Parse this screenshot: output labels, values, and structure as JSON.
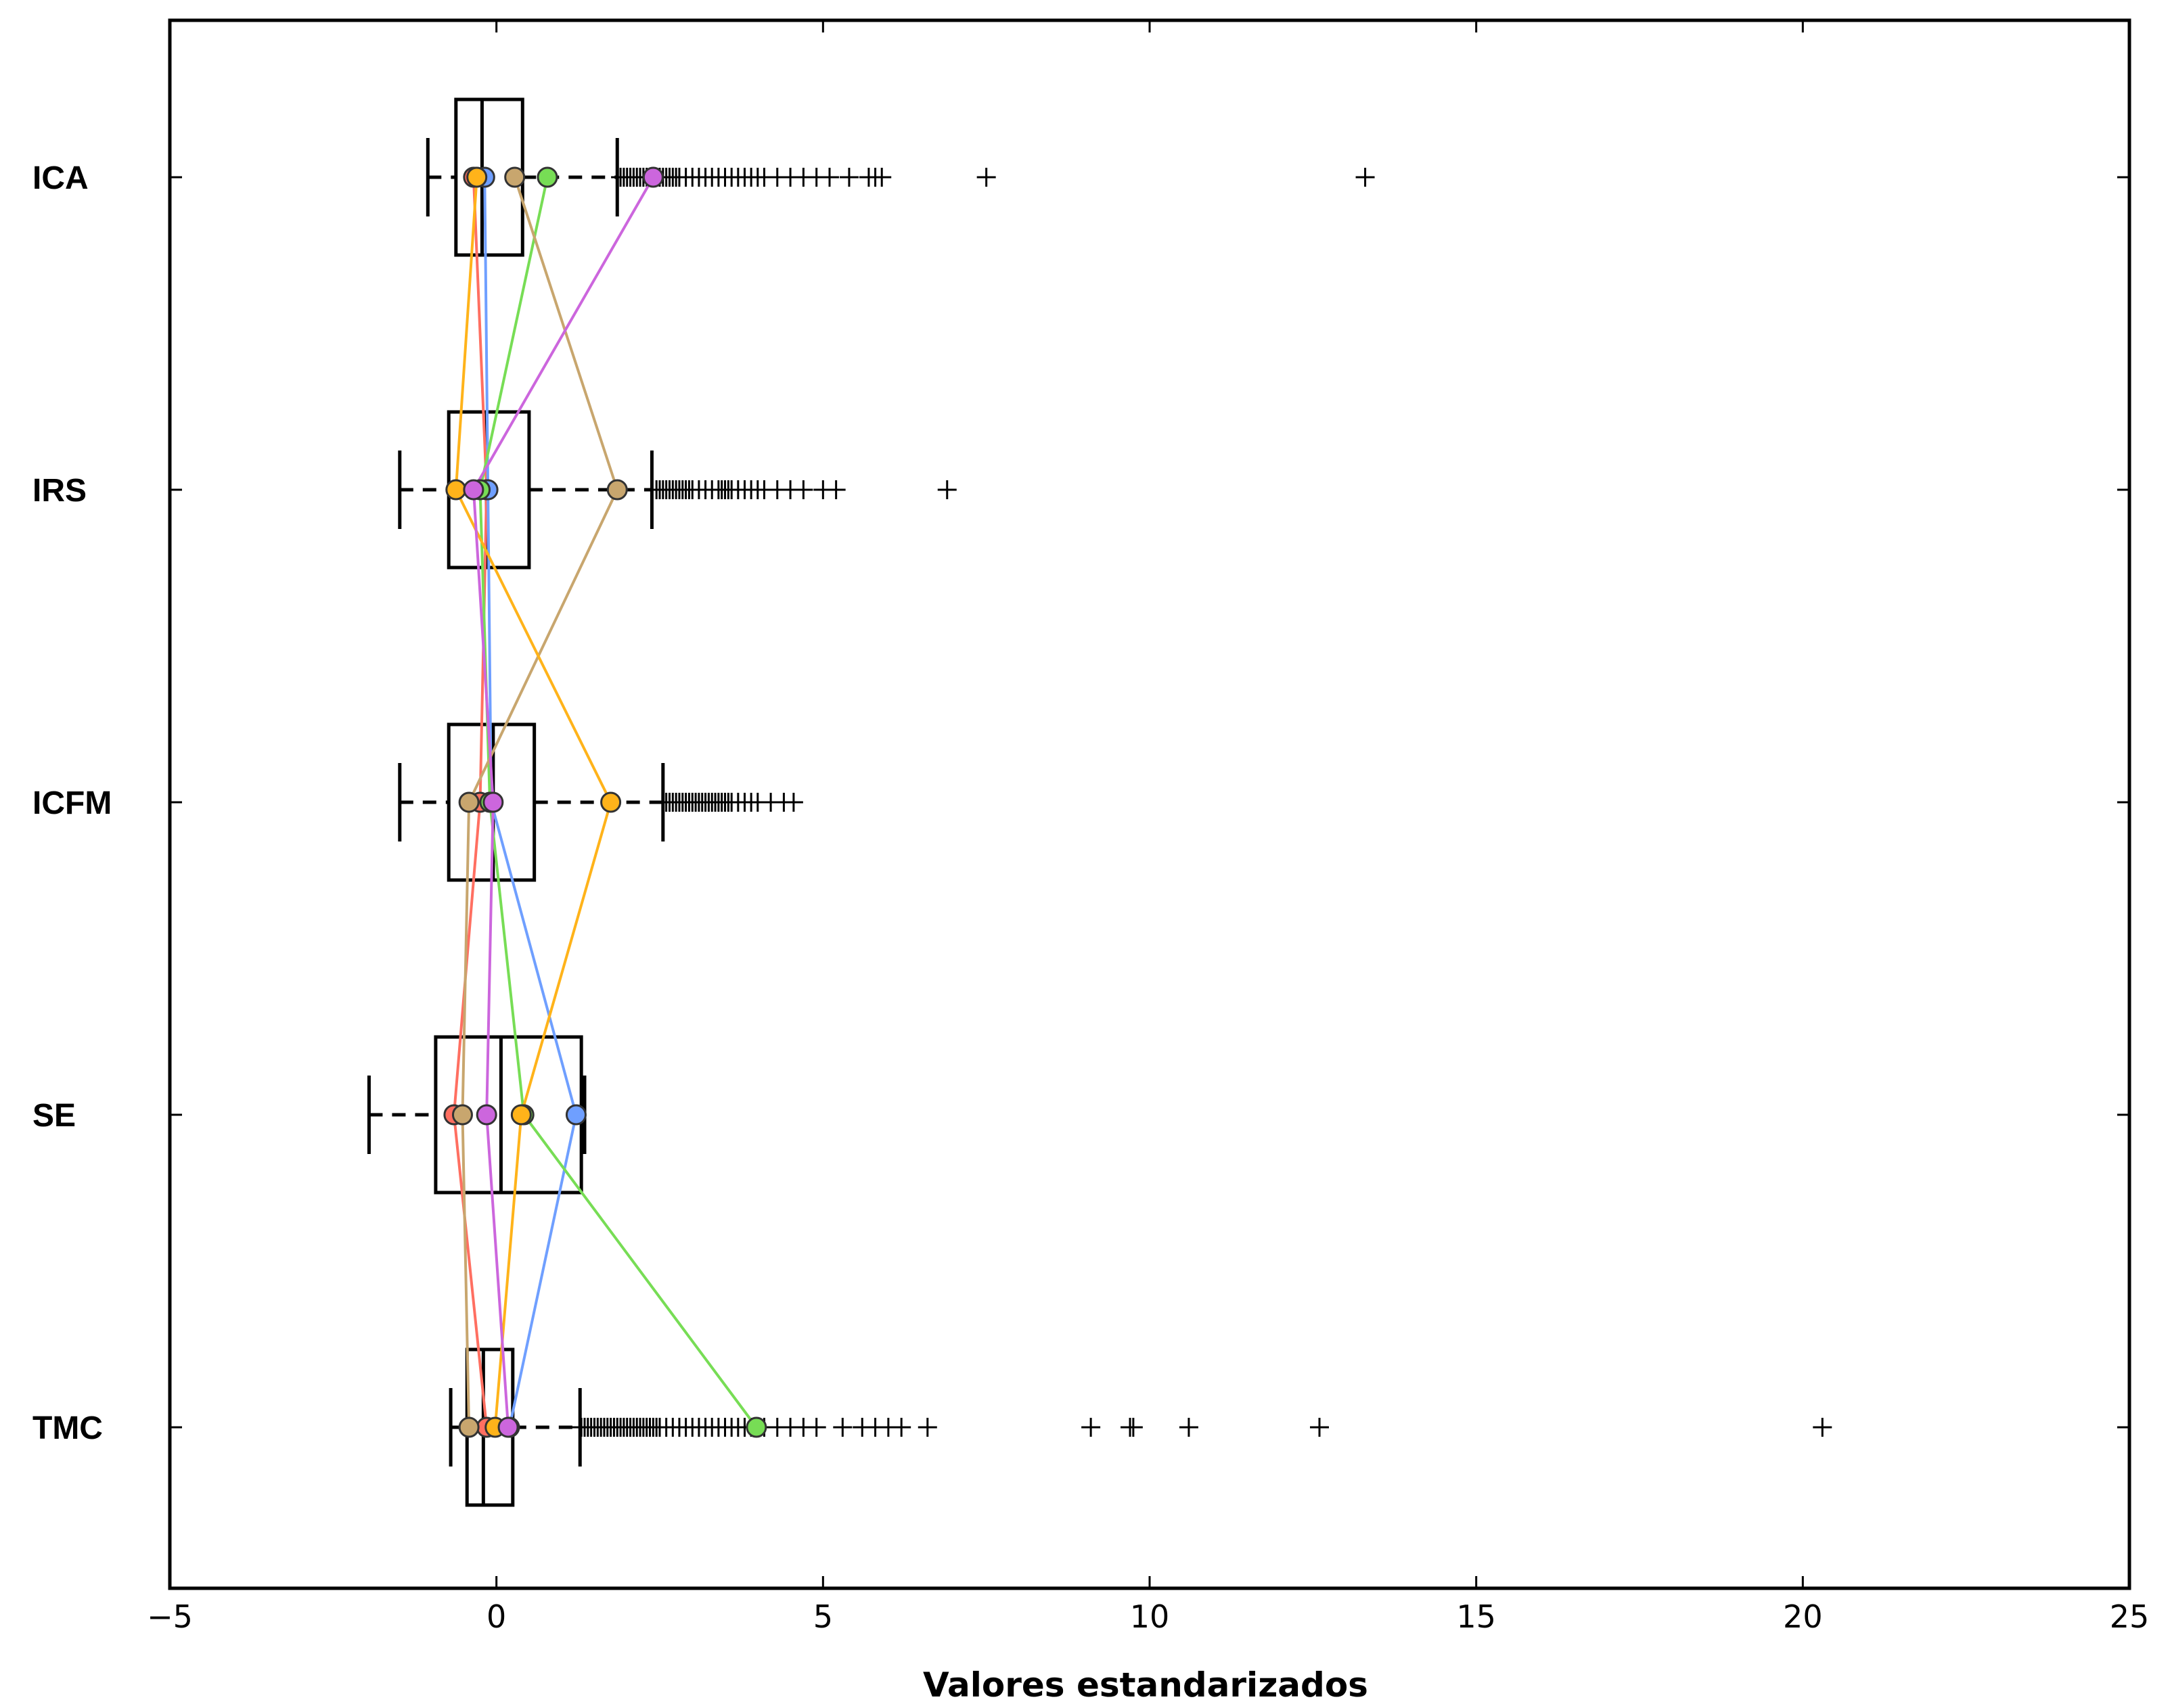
{
  "chart_data": {
    "type": "boxplot",
    "orientation": "horizontal",
    "xlabel": "Valores estandarizados",
    "ylabel": "",
    "xlim": [
      -5,
      25
    ],
    "xticks": [
      -5,
      0,
      5,
      10,
      15,
      20,
      25
    ],
    "xtick_labels": [
      "−5",
      "0",
      "5",
      "10",
      "15",
      "20",
      "25"
    ],
    "categories": [
      "ICA",
      "IRS",
      "ICFM",
      "SE",
      "TMC"
    ],
    "boxes": [
      {
        "name": "ICA",
        "whisker_low": -1.05,
        "q1": -0.62,
        "median": -0.22,
        "q3": 0.4,
        "whisker_high": 1.85,
        "outliers": [
          1.9,
          1.95,
          2.0,
          2.05,
          2.1,
          2.15,
          2.2,
          2.25,
          2.3,
          2.35,
          2.4,
          2.45,
          2.5,
          2.55,
          2.6,
          2.65,
          2.7,
          2.75,
          2.8,
          2.9,
          3.0,
          3.1,
          3.2,
          3.3,
          3.4,
          3.5,
          3.6,
          3.7,
          3.8,
          3.9,
          4.0,
          4.1,
          4.3,
          4.5,
          4.7,
          4.9,
          5.1,
          5.4,
          5.7,
          5.8,
          5.9,
          7.5,
          13.3
        ]
      },
      {
        "name": "IRS",
        "whisker_low": -1.48,
        "q1": -0.73,
        "median": -0.15,
        "q3": 0.5,
        "whisker_high": 2.38,
        "outliers": [
          2.45,
          2.5,
          2.55,
          2.6,
          2.65,
          2.7,
          2.75,
          2.8,
          2.85,
          2.9,
          2.95,
          3.0,
          3.1,
          3.2,
          3.3,
          3.4,
          3.45,
          3.5,
          3.55,
          3.6,
          3.7,
          3.8,
          3.9,
          4.0,
          4.1,
          4.3,
          4.5,
          4.7,
          5.0,
          5.2,
          6.9
        ]
      },
      {
        "name": "ICFM",
        "whisker_low": -1.48,
        "q1": -0.73,
        "median": -0.05,
        "q3": 0.58,
        "whisker_high": 2.55,
        "outliers": [
          2.6,
          2.65,
          2.7,
          2.75,
          2.8,
          2.85,
          2.9,
          2.95,
          3.0,
          3.05,
          3.1,
          3.15,
          3.2,
          3.25,
          3.3,
          3.35,
          3.4,
          3.45,
          3.5,
          3.55,
          3.6,
          3.7,
          3.8,
          3.9,
          4.0,
          4.2,
          4.4,
          4.55
        ]
      },
      {
        "name": "SE",
        "whisker_low": -1.95,
        "q1": -0.93,
        "median": 0.07,
        "q3": 1.3,
        "whisker_high": 1.35,
        "outliers": []
      },
      {
        "name": "TMC",
        "whisker_low": -0.7,
        "q1": -0.45,
        "median": -0.2,
        "q3": 0.25,
        "whisker_high": 1.28,
        "outliers": [
          1.3,
          1.35,
          1.4,
          1.45,
          1.5,
          1.55,
          1.6,
          1.65,
          1.7,
          1.75,
          1.8,
          1.85,
          1.9,
          1.95,
          2.0,
          2.05,
          2.1,
          2.15,
          2.2,
          2.25,
          2.3,
          2.35,
          2.4,
          2.45,
          2.5,
          2.6,
          2.7,
          2.8,
          2.9,
          3.0,
          3.1,
          3.2,
          3.3,
          3.4,
          3.5,
          3.6,
          3.7,
          3.8,
          3.9,
          4.1,
          4.3,
          4.5,
          4.7,
          4.9,
          5.3,
          5.6,
          5.8,
          6.0,
          6.2,
          6.6,
          9.1,
          9.7,
          9.75,
          10.6,
          12.6,
          20.3
        ]
      }
    ],
    "series": [
      {
        "color": "#ff6f61",
        "values": [
          -0.35,
          -0.15,
          -0.25,
          -0.65,
          -0.15
        ]
      },
      {
        "color": "#6f9fff",
        "values": [
          -0.18,
          -0.13,
          -0.08,
          1.22,
          0.2
        ]
      },
      {
        "color": "#77dd55",
        "values": [
          0.78,
          -0.25,
          -0.1,
          0.42,
          3.98
        ]
      },
      {
        "color": "#c8a66e",
        "values": [
          0.28,
          1.85,
          -0.42,
          -0.52,
          -0.42
        ]
      },
      {
        "color": "#ffb31a",
        "values": [
          -0.3,
          -0.62,
          1.75,
          0.38,
          -0.02
        ]
      },
      {
        "color": "#cc66dd",
        "values": [
          2.4,
          -0.35,
          -0.05,
          -0.15,
          0.18
        ]
      }
    ],
    "grid": false,
    "legend": "none"
  }
}
